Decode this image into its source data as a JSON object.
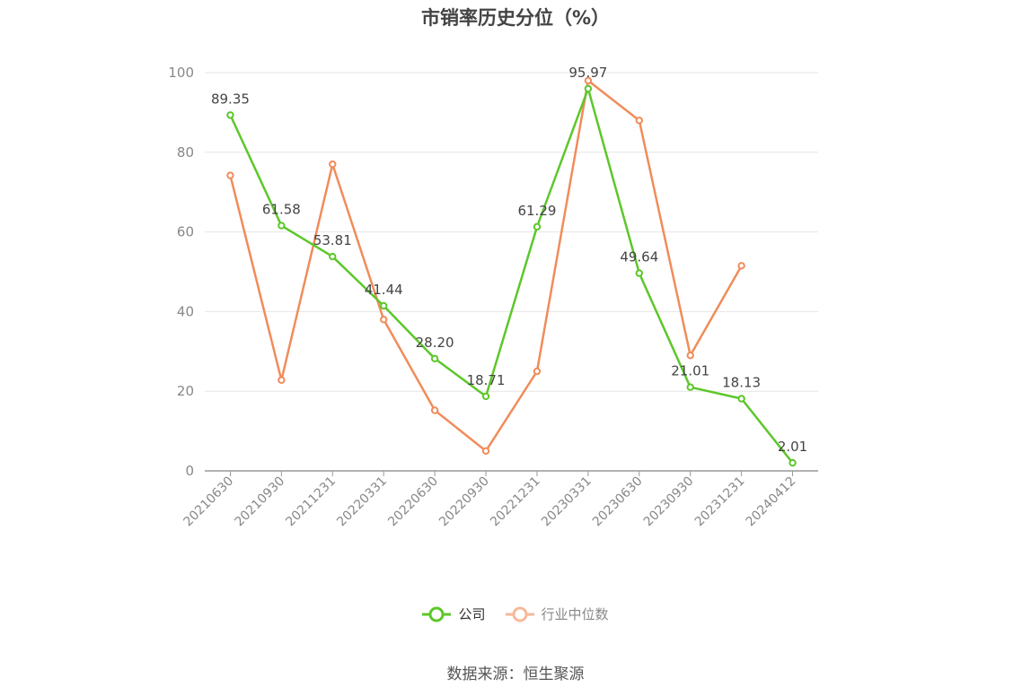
{
  "title": "市销率历史分位（%）",
  "source_text": "数据来源：恒生聚源",
  "legend": {
    "company_label": "公司",
    "industry_label": "行业中位数"
  },
  "colors": {
    "company": "#5cc72a",
    "industry": "#f08c5a",
    "industry_legend": "#f7b89a",
    "grid": "#e6e6e6",
    "axis": "#999999",
    "tick_text": "#888888",
    "label_text": "#444444"
  },
  "chart_data": {
    "type": "line",
    "title": "市销率历史分位（%）",
    "xlabel": "",
    "ylabel": "",
    "ylim": [
      0,
      100
    ],
    "yticks": [
      0,
      20,
      40,
      60,
      80,
      100
    ],
    "grid": true,
    "legend_position": "bottom",
    "categories": [
      "20210630",
      "20210930",
      "20211231",
      "20220331",
      "20220630",
      "20220930",
      "20221231",
      "20230331",
      "20230630",
      "20230930",
      "20231231",
      "20240412"
    ],
    "series": [
      {
        "name": "公司",
        "values": [
          89.35,
          61.58,
          53.81,
          41.44,
          28.2,
          18.71,
          61.29,
          95.97,
          49.64,
          21.01,
          18.13,
          2.01
        ],
        "labels": [
          "89.35",
          "61.58",
          "53.81",
          "41.44",
          "28.20",
          "18.71",
          "61.29",
          "95.97",
          "49.64",
          "21.01",
          "18.13",
          "2.01"
        ]
      },
      {
        "name": "行业中位数",
        "values": [
          74.2,
          22.8,
          77.0,
          38.0,
          15.2,
          5.0,
          25.0,
          98.0,
          88.0,
          29.0,
          51.5,
          null
        ]
      }
    ]
  }
}
